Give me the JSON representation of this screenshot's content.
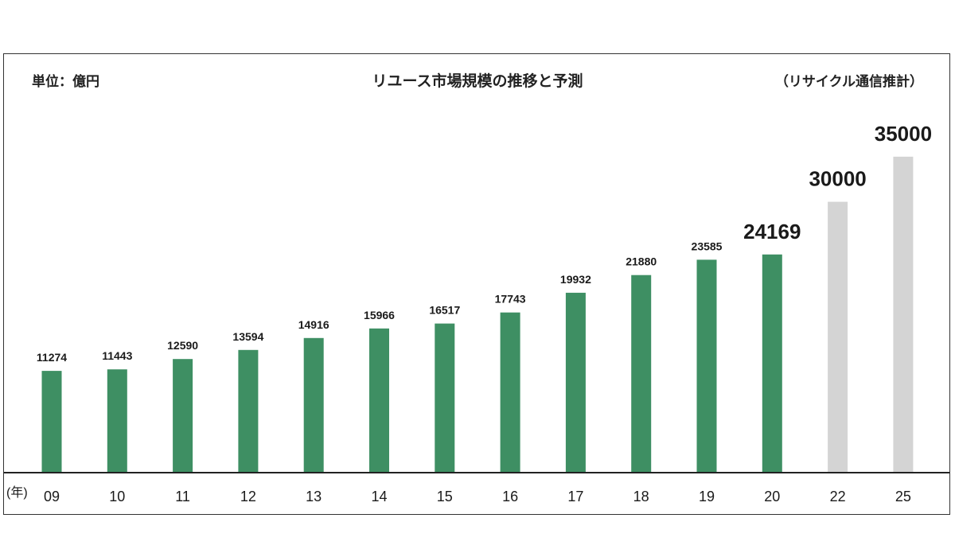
{
  "chart_data": {
    "type": "bar",
    "title": "リユース市場規模の推移と予測",
    "unit_label": "単位：億円",
    "source": "（リサイクル通信推計）",
    "x_unit_label": "(年)",
    "categories": [
      "09",
      "10",
      "11",
      "12",
      "13",
      "14",
      "15",
      "16",
      "17",
      "18",
      "19",
      "20",
      "22",
      "25"
    ],
    "values": [
      11274,
      11443,
      12590,
      13594,
      14916,
      15966,
      16517,
      17743,
      19932,
      21880,
      23585,
      24169,
      30000,
      35000
    ],
    "forecast_from_index": 12,
    "highlight_index": 11,
    "ylim": [
      0,
      36000
    ],
    "grid": false,
    "colors": {
      "actual": "#3e8f63",
      "forecast": "#d4d4d4",
      "axis": "#222222"
    }
  }
}
